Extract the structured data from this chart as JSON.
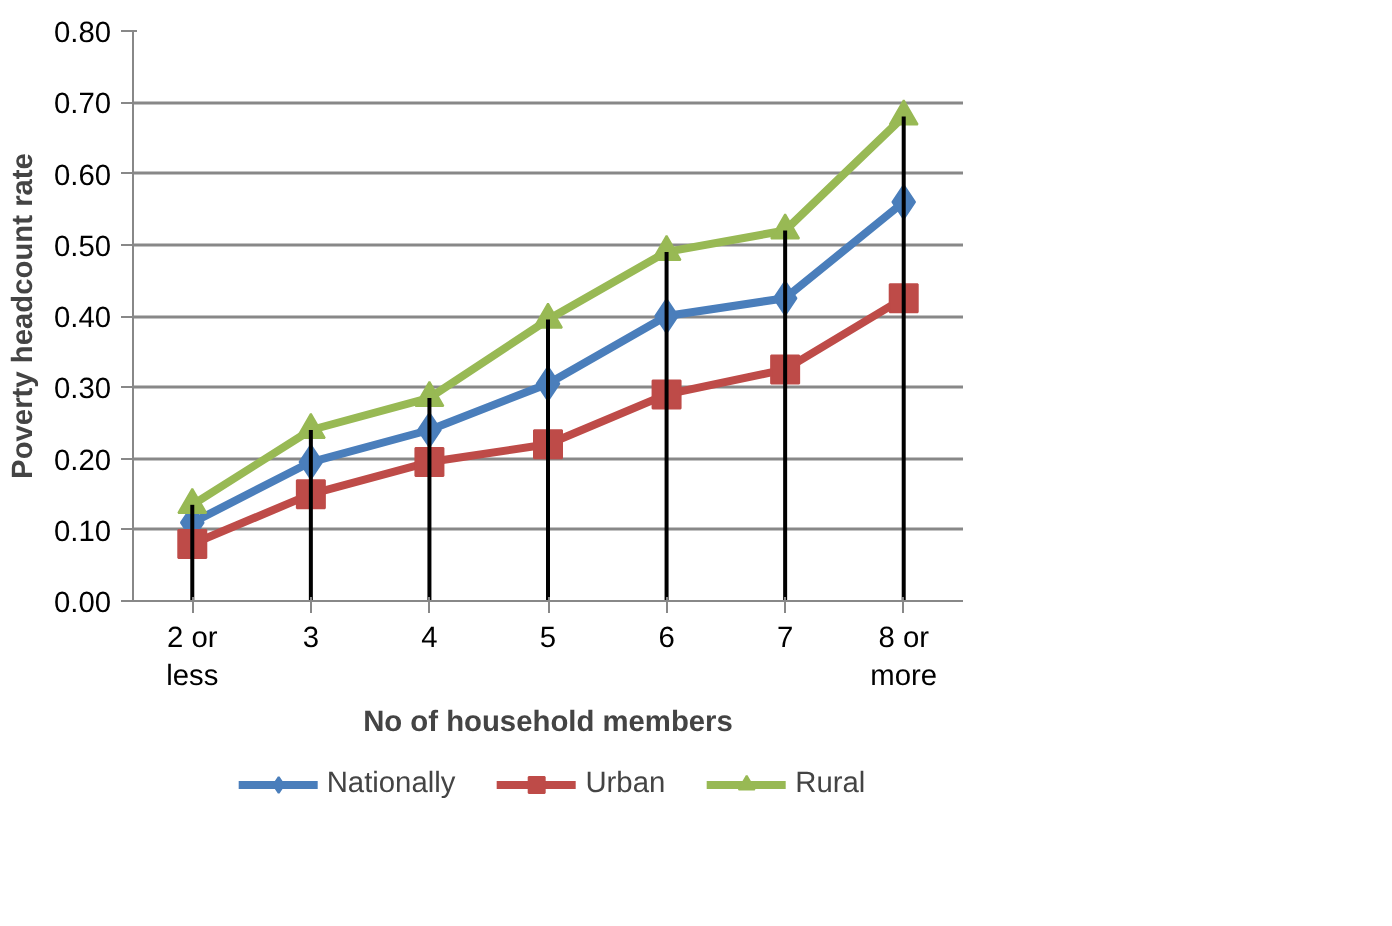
{
  "chart_data": {
    "type": "line",
    "xlabel": "No of household members",
    "ylabel": "Poverty headcount rate",
    "categories": [
      "2 or\nless",
      "3",
      "4",
      "5",
      "6",
      "7",
      "8 or\nmore"
    ],
    "series": [
      {
        "name": "Nationally",
        "color": "#4a7ebb",
        "marker": "diamond",
        "values": [
          0.11,
          0.195,
          0.24,
          0.305,
          0.4,
          0.425,
          0.56
        ]
      },
      {
        "name": "Urban",
        "color": "#be4b48",
        "marker": "square",
        "values": [
          0.08,
          0.15,
          0.195,
          0.22,
          0.29,
          0.325,
          0.425
        ]
      },
      {
        "name": "Rural",
        "color": "#98b954",
        "marker": "triangle",
        "values": [
          0.135,
          0.24,
          0.285,
          0.395,
          0.49,
          0.52,
          0.68
        ],
        "errors": [
          [
            0,
            0.135
          ],
          [
            0,
            0.24
          ],
          [
            0,
            0.285
          ],
          [
            0,
            0.395
          ],
          [
            0,
            0.49
          ],
          [
            0,
            0.52
          ],
          [
            0,
            0.68
          ]
        ]
      }
    ],
    "ylim": [
      0,
      0.8
    ],
    "yticks": [
      {
        "value": 0,
        "label": "0.00"
      },
      {
        "value": 0.1,
        "label": "0.10"
      },
      {
        "value": 0.2,
        "label": "0.20"
      },
      {
        "value": 0.3,
        "label": "0.30"
      },
      {
        "value": 0.4,
        "label": "0.40"
      },
      {
        "value": 0.5,
        "label": "0.50"
      },
      {
        "value": 0.6,
        "label": "0.60"
      },
      {
        "value": 0.7,
        "label": "0.70"
      },
      {
        "value": 0.8,
        "label": "0.80"
      }
    ],
    "grid": "y",
    "legend": "bottom",
    "line_style": "solid"
  }
}
